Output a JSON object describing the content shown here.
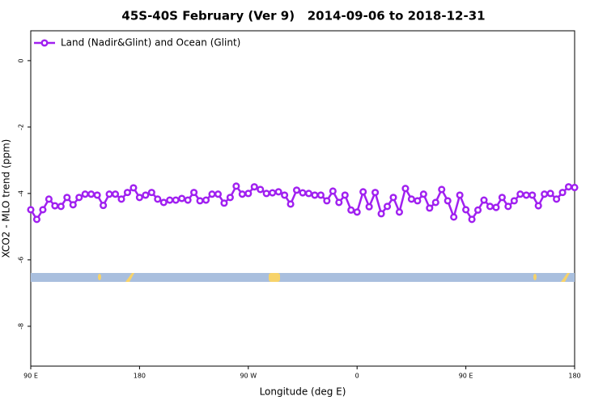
{
  "chart_data": {
    "type": "line",
    "title": "45S-40S February (Ver 9)   2014-09-06 to 2018-12-31",
    "xlabel": "Longitude (deg E)",
    "ylabel": "XCO2 - MLO trend (ppm)",
    "xlim": [
      90,
      540
    ],
    "xticks": [
      {
        "value": 90,
        "label": "90 E"
      },
      {
        "value": 180,
        "label": "180"
      },
      {
        "value": 270,
        "label": "90 W"
      },
      {
        "value": 360,
        "label": "0"
      },
      {
        "value": 450,
        "label": "90 E"
      },
      {
        "value": 540,
        "label": "180"
      }
    ],
    "ylim": [
      -9.2,
      0.9
    ],
    "yticks": [
      0,
      -2,
      -4,
      -6,
      -8
    ],
    "legend": "top-left",
    "x": [
      90,
      95,
      100,
      105,
      110,
      115,
      120,
      125,
      130,
      135,
      140,
      145,
      150,
      155,
      160,
      165,
      170,
      175,
      180,
      185,
      190,
      195,
      200,
      205,
      210,
      215,
      220,
      225,
      230,
      235,
      240,
      245,
      250,
      255,
      260,
      265,
      270,
      275,
      280,
      285,
      290,
      295,
      300,
      305,
      310,
      315,
      320,
      325,
      330,
      335,
      340,
      345,
      350,
      355,
      360,
      365,
      370,
      375,
      380,
      385,
      390,
      395,
      400,
      405,
      410,
      415,
      420,
      425,
      430,
      435,
      440,
      445,
      450,
      455,
      460,
      465,
      470,
      475,
      480,
      485,
      490,
      495,
      500,
      505,
      510,
      515,
      520,
      525,
      530,
      535,
      540
    ],
    "series": [
      {
        "name": "Land (Nadir&Glint) and Ocean (Glint)",
        "color": "#a020f0",
        "values": [
          -4.49,
          -4.78,
          -4.49,
          -4.17,
          -4.37,
          -4.39,
          -4.12,
          -4.34,
          -4.12,
          -4.02,
          -4.02,
          -4.05,
          -4.36,
          -4.02,
          -4.02,
          -4.17,
          -3.97,
          -3.83,
          -4.12,
          -4.05,
          -3.97,
          -4.17,
          -4.27,
          -4.2,
          -4.2,
          -4.15,
          -4.2,
          -3.97,
          -4.22,
          -4.2,
          -4.02,
          -4.02,
          -4.29,
          -4.12,
          -3.78,
          -4.02,
          -4.0,
          -3.8,
          -3.88,
          -4.0,
          -3.98,
          -3.95,
          -4.05,
          -4.32,
          -3.9,
          -3.98,
          -4.0,
          -4.05,
          -4.05,
          -4.22,
          -3.93,
          -4.27,
          -4.05,
          -4.5,
          -4.56,
          -3.95,
          -4.4,
          -3.97,
          -4.61,
          -4.39,
          -4.12,
          -4.56,
          -3.85,
          -4.17,
          -4.22,
          -4.02,
          -4.44,
          -4.27,
          -3.88,
          -4.22,
          -4.71,
          -4.05,
          -4.49,
          -4.78,
          -4.5,
          -4.2,
          -4.39,
          -4.42,
          -4.12,
          -4.39,
          -4.22,
          -4.02,
          -4.05,
          -4.05,
          -4.37,
          -4.02,
          -4.0,
          -4.17,
          -3.97,
          -3.8,
          -3.82
        ]
      }
    ]
  }
}
